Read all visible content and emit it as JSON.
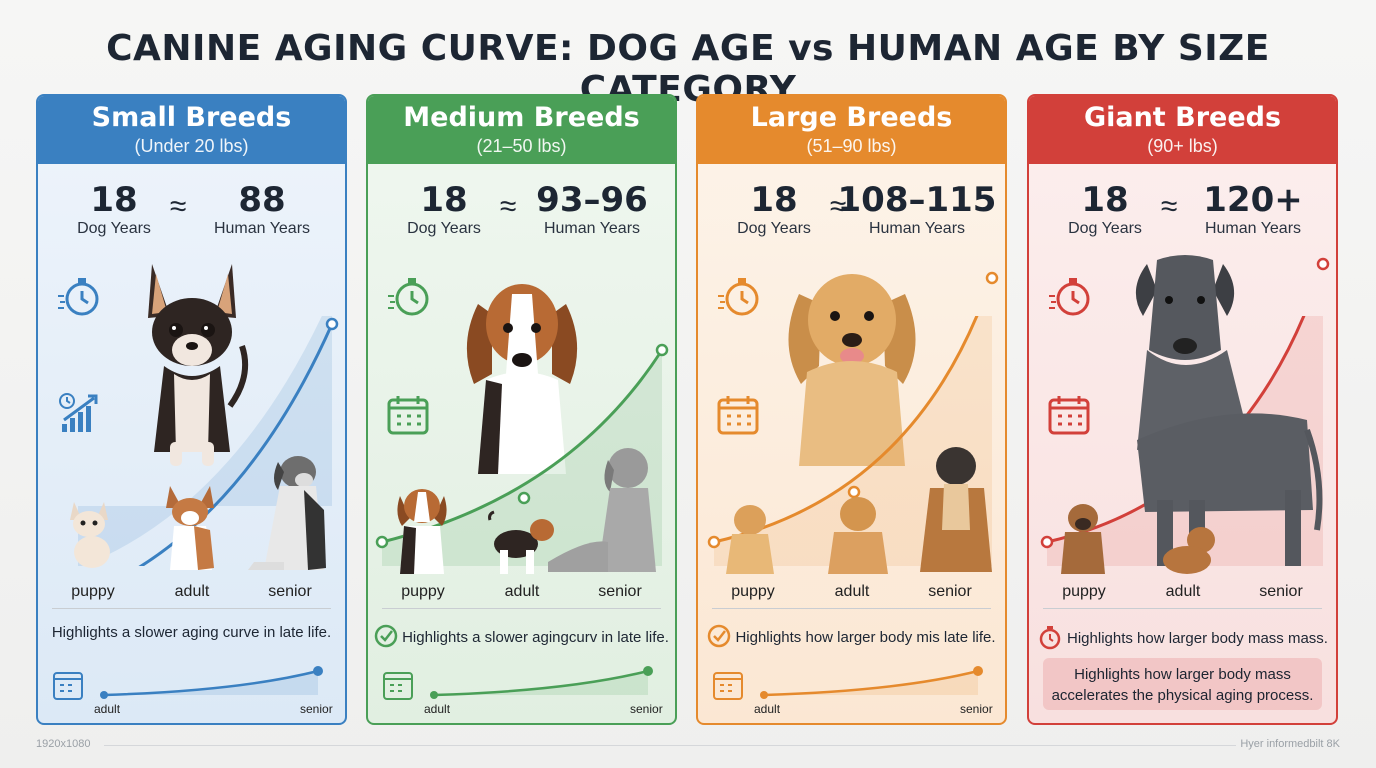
{
  "title": "CANINE AGING CURVE: DOG AGE vs HUMAN AGE BY SIZE CATEGORY",
  "cards": [
    {
      "name": "Small Breeds",
      "weight": "(Under 20 lbs)",
      "dog_age": "18",
      "dog_label": "Dog Years",
      "approx": "≈",
      "human_age": "88",
      "human_label": "Human Years",
      "stages": [
        "puppy",
        "adult",
        "senior"
      ],
      "note": "Highlights a slower aging curve in late life.",
      "mini_labels": [
        "adult",
        "senior"
      ],
      "color": "#3a80c1",
      "bg_top": "#eef4fb",
      "bg_bottom": "#dce9f6"
    },
    {
      "name": "Medium Breeds",
      "weight": "(21–50 lbs)",
      "dog_age": "18",
      "dog_label": "Dog Years",
      "approx": "≈",
      "human_age": "93–96",
      "human_label": "Human Years",
      "stages": [
        "puppy",
        "adult",
        "senior"
      ],
      "note": "Highlights a slower agingcurv in late life.",
      "mini_labels": [
        "adult",
        "senior"
      ],
      "color": "#4a9f57",
      "bg_top": "#f0f7f0",
      "bg_bottom": "#e1efe1"
    },
    {
      "name": "Large Breeds",
      "weight": "(51–90 lbs)",
      "dog_age": "18",
      "dog_label": "Dog Years",
      "approx": "≈",
      "human_age": "108–115",
      "human_label": "Human Years",
      "stages": [
        "puppy",
        "adult",
        "senior"
      ],
      "note": "Highlights how larger body mis late life.",
      "mini_labels": [
        "adult",
        "senior"
      ],
      "color": "#e58a2d",
      "bg_top": "#fdf4ea",
      "bg_bottom": "#fbe7d3"
    },
    {
      "name": "Giant Breeds",
      "weight": "(90+ lbs)",
      "dog_age": "18",
      "dog_label": "Dog Years",
      "approx": "≈",
      "human_age": "120+",
      "human_label": "Human Years",
      "stages": [
        "puppy",
        "adult",
        "senior"
      ],
      "note": "Highlights how larger body mass mass.",
      "note_box": "Highlights how larger body mass accelerates the physical aging process.",
      "color": "#d2403a",
      "bg_top": "#fcefee",
      "bg_bottom": "#f8e0df"
    }
  ],
  "footer_left": "1920x1080",
  "footer_right": "Hyer informedbilt 8K"
}
